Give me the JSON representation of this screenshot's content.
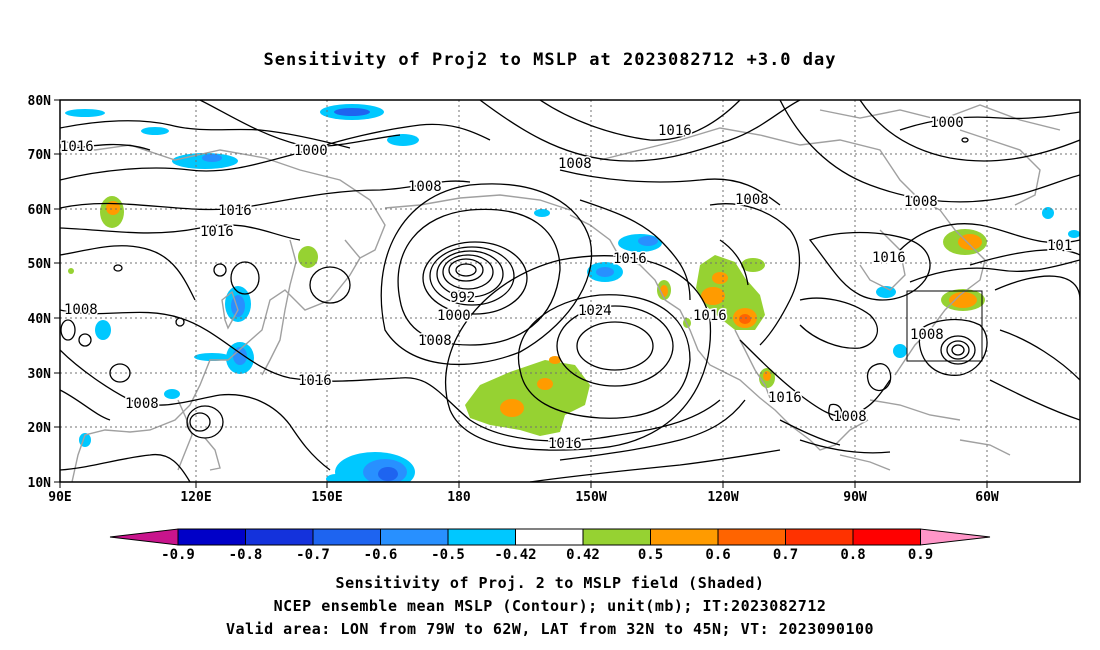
{
  "title": "Sensitivity of Proj2 to MSLP at 2023082712 +3.0 day",
  "map": {
    "lon_labels": [
      "90E",
      "120E",
      "150E",
      "180",
      "150W",
      "120W",
      "90W",
      "60W"
    ],
    "lat_labels": [
      "80N",
      "70N",
      "60N",
      "50N",
      "40N",
      "30N",
      "20N",
      "10N"
    ],
    "contour_labels": [
      "1016",
      "1000",
      "1008",
      "1016",
      "1016",
      "1008",
      "992",
      "1000",
      "1008",
      "1016",
      "1008",
      "1024",
      "1016",
      "1016",
      "1016",
      "1008",
      "1016",
      "1008",
      "1016",
      "1008",
      "1000",
      "1016",
      "1008",
      "1008",
      "101"
    ],
    "valid_box_lon": [
      -79,
      -62
    ],
    "valid_box_lat": [
      32,
      45
    ]
  },
  "colorbar": {
    "tick_labels": [
      "-0.9",
      "-0.8",
      "-0.7",
      "-0.6",
      "-0.5",
      "-0.42",
      "0.42",
      "0.5",
      "0.6",
      "0.7",
      "0.8",
      "0.9"
    ],
    "colors": [
      "#0000c8",
      "#1432dc",
      "#1e64f0",
      "#2890ff",
      "#00c8ff",
      "#ffffff",
      "#96d232",
      "#ff9b00",
      "#ff6400",
      "#ff3200",
      "#ff0000"
    ],
    "left_end_color": "#c8148c",
    "right_end_color": "#ff96c8"
  },
  "captions": {
    "line1": "Sensitivity of Proj. 2 to MSLP field (Shaded)",
    "line2": "NCEP ensemble mean MSLP (Contour); unit(mb); IT:2023082712",
    "line3": "Valid area: LON from 79W to 62W, LAT from 32N to 45N; VT: 2023090100"
  }
}
